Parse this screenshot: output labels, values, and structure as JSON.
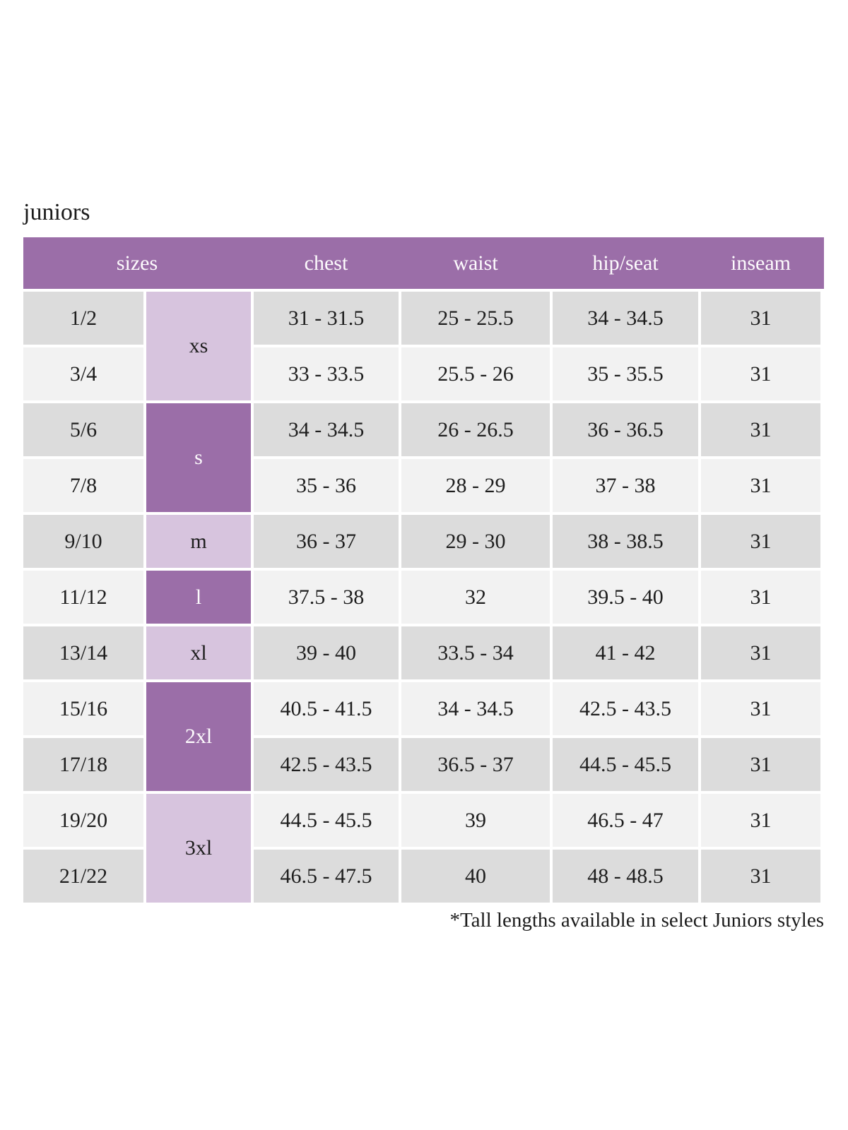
{
  "page": {
    "title": "juniors",
    "footnote": "*Tall lengths available in select Juniors styles"
  },
  "colors": {
    "header_bg": "#9b6ea8",
    "size_letter_dark_bg": "#9b6ea8",
    "size_letter_light_bg": "#d7c4de",
    "row_odd_bg": "#dcdcdc",
    "row_even_bg": "#f2f2f2",
    "header_text": "#ffffff",
    "body_text": "#1e1e1e"
  },
  "table": {
    "headers": {
      "sizes": "sizes",
      "chest": "chest",
      "waist": "waist",
      "hip_seat": "hip/seat",
      "inseam": "inseam"
    },
    "size_groups": [
      {
        "label": "xs",
        "rows_spanned": 2,
        "shade": "light"
      },
      {
        "label": "s",
        "rows_spanned": 2,
        "shade": "dark"
      },
      {
        "label": "m",
        "rows_spanned": 1,
        "shade": "light"
      },
      {
        "label": "l",
        "rows_spanned": 1,
        "shade": "dark"
      },
      {
        "label": "xl",
        "rows_spanned": 1,
        "shade": "light"
      },
      {
        "label": "2xl",
        "rows_spanned": 2,
        "shade": "dark"
      },
      {
        "label": "3xl",
        "rows_spanned": 2,
        "shade": "light"
      }
    ],
    "rows": [
      {
        "size": "1/2",
        "chest": "31 - 31.5",
        "waist": "25 - 25.5",
        "hip_seat": "34 - 34.5",
        "inseam": "31"
      },
      {
        "size": "3/4",
        "chest": "33 - 33.5",
        "waist": "25.5 - 26",
        "hip_seat": "35 - 35.5",
        "inseam": "31"
      },
      {
        "size": "5/6",
        "chest": "34 - 34.5",
        "waist": "26 - 26.5",
        "hip_seat": "36 - 36.5",
        "inseam": "31"
      },
      {
        "size": "7/8",
        "chest": "35 - 36",
        "waist": "28 - 29",
        "hip_seat": "37 - 38",
        "inseam": "31"
      },
      {
        "size": "9/10",
        "chest": "36 - 37",
        "waist": "29 - 30",
        "hip_seat": "38 - 38.5",
        "inseam": "31"
      },
      {
        "size": "11/12",
        "chest": "37.5 - 38",
        "waist": "32",
        "hip_seat": "39.5 - 40",
        "inseam": "31"
      },
      {
        "size": "13/14",
        "chest": "39 - 40",
        "waist": "33.5 - 34",
        "hip_seat": "41 - 42",
        "inseam": "31"
      },
      {
        "size": "15/16",
        "chest": "40.5 - 41.5",
        "waist": "34 - 34.5",
        "hip_seat": "42.5 - 43.5",
        "inseam": "31"
      },
      {
        "size": "17/18",
        "chest": "42.5 - 43.5",
        "waist": "36.5 - 37",
        "hip_seat": "44.5 - 45.5",
        "inseam": "31"
      },
      {
        "size": "19/20",
        "chest": "44.5 - 45.5",
        "waist": "39",
        "hip_seat": "46.5 - 47",
        "inseam": "31"
      },
      {
        "size": "21/22",
        "chest": "46.5 - 47.5",
        "waist": "40",
        "hip_seat": "48 - 48.5",
        "inseam": "31"
      }
    ]
  }
}
